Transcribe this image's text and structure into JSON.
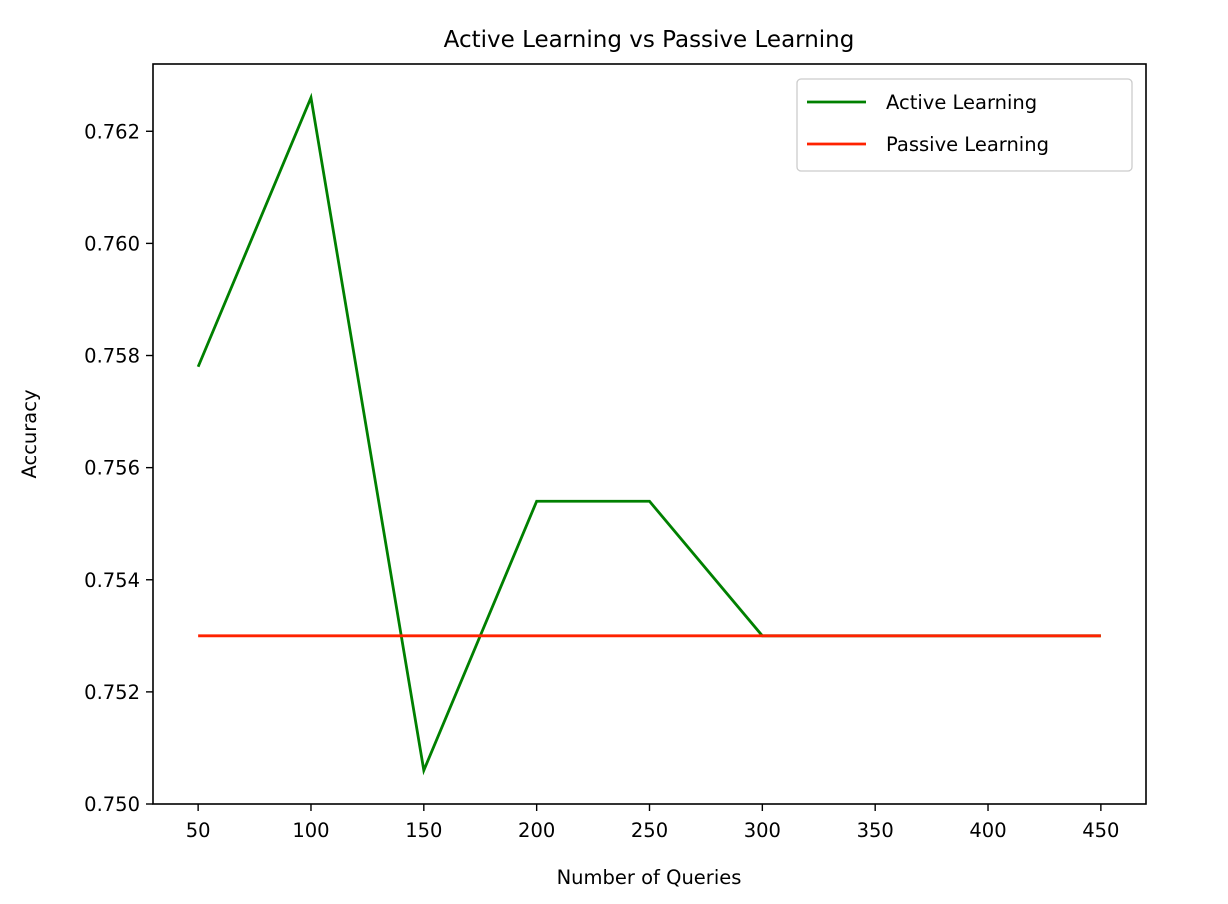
{
  "chart_data": {
    "type": "line",
    "title": "Active Learning vs Passive Learning",
    "xlabel": "Number of Queries",
    "ylabel": "Accuracy",
    "x": [
      50,
      100,
      150,
      200,
      250,
      300,
      350,
      400,
      450
    ],
    "xlim": [
      30,
      470
    ],
    "ylim": [
      0.75,
      0.7632
    ],
    "xticks": [
      50,
      100,
      150,
      200,
      250,
      300,
      350,
      400,
      450
    ],
    "xtick_labels": [
      "50",
      "100",
      "150",
      "200",
      "250",
      "300",
      "350",
      "400",
      "450"
    ],
    "yticks": [
      0.75,
      0.752,
      0.754,
      0.756,
      0.758,
      0.76,
      0.762
    ],
    "ytick_labels": [
      "0.750",
      "0.752",
      "0.754",
      "0.756",
      "0.758",
      "0.760",
      "0.762"
    ],
    "grid": false,
    "legend_position": "top-right",
    "series": [
      {
        "name": "Active Learning",
        "color": "#008000",
        "x": [
          50,
          100,
          150,
          200,
          250,
          300,
          350,
          400,
          450
        ],
        "values": [
          0.7578,
          0.7626,
          0.7506,
          0.7554,
          0.7554,
          0.753,
          0.753,
          0.753,
          0.753
        ]
      },
      {
        "name": "Passive Learning",
        "color": "#ff2200",
        "x": [
          50,
          100,
          150,
          200,
          250,
          300,
          350,
          400,
          450
        ],
        "values": [
          0.753,
          0.753,
          0.753,
          0.753,
          0.753,
          0.753,
          0.753,
          0.753,
          0.753
        ]
      }
    ]
  }
}
